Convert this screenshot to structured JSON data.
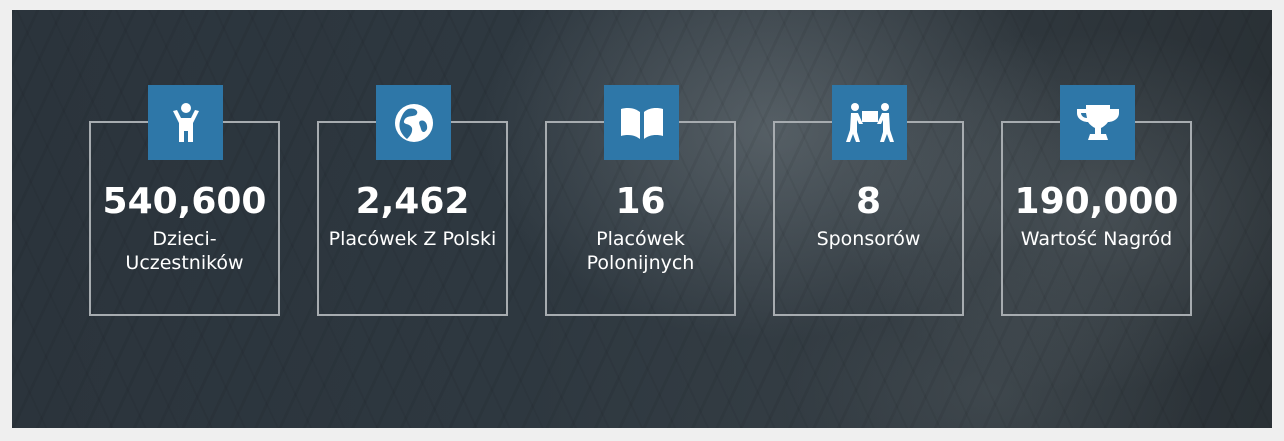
{
  "accent_color": "#2e77a8",
  "stats": [
    {
      "icon": "child-icon",
      "value": "540,600",
      "label": "Dzieci-Uczestników"
    },
    {
      "icon": "globe-icon",
      "value": "2,462",
      "label": "Placówek Z Polski"
    },
    {
      "icon": "book-icon",
      "value": "16",
      "label": "Placówek Polonijnych"
    },
    {
      "icon": "people-carry-icon",
      "value": "8",
      "label": "Sponsorów"
    },
    {
      "icon": "trophy-icon",
      "value": "190,000",
      "label": "Wartość Nagród"
    }
  ]
}
